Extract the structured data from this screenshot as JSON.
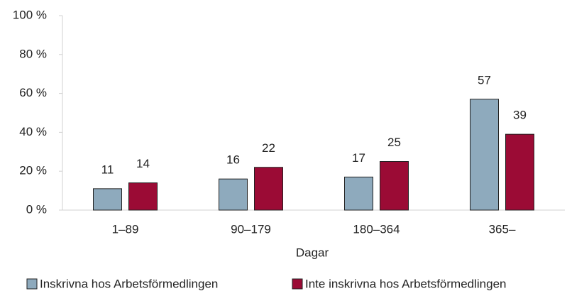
{
  "chart_data": {
    "type": "bar",
    "xlabel": "Dagar",
    "categories": [
      "1–89",
      "90–179",
      "180–364",
      "365–"
    ],
    "series": [
      {
        "name": "Inskrivna hos Arbetsförmedlingen",
        "color": "#8eaabd",
        "values": [
          11,
          16,
          17,
          57
        ]
      },
      {
        "name": "Inte inskrivna hos Arbetsförmedlingen",
        "color": "#9b0b35",
        "values": [
          14,
          22,
          25,
          39
        ]
      }
    ],
    "ylim": [
      0,
      100
    ],
    "yticks": [
      {
        "value": 0,
        "label": "0 %"
      },
      {
        "value": 20,
        "label": "20 %"
      },
      {
        "value": 40,
        "label": "40 %"
      },
      {
        "value": 60,
        "label": "60 %"
      },
      {
        "value": 80,
        "label": "80 %"
      },
      {
        "value": 100,
        "label": "100 %"
      }
    ],
    "legend": "bottom"
  }
}
